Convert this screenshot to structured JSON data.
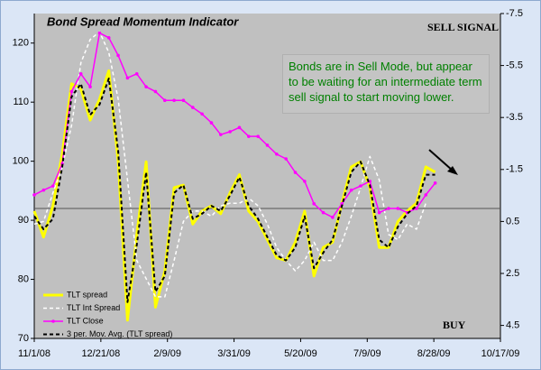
{
  "chart_data": {
    "type": "line",
    "title": "Bond Spread Momentum Indicator",
    "annotations": {
      "top_right": "SELL SIGNAL",
      "bottom_right": "BUY",
      "note": "Bonds are in Sell Mode, but appear to be waiting for an intermediate term sell signal to start moving lower."
    },
    "x": [
      "11/1/08",
      "11/8/08",
      "11/15/08",
      "11/22/08",
      "11/29/08",
      "12/6/08",
      "12/13/08",
      "12/20/08",
      "12/27/08",
      "1/3/09",
      "1/10/09",
      "1/17/09",
      "1/24/09",
      "1/31/09",
      "2/7/09",
      "2/14/09",
      "2/21/09",
      "2/28/09",
      "3/7/09",
      "3/14/09",
      "3/21/09",
      "3/28/09",
      "4/4/09",
      "4/11/09",
      "4/18/09",
      "4/25/09",
      "5/2/09",
      "5/9/09",
      "5/16/09",
      "5/23/09",
      "5/30/09",
      "6/6/09",
      "6/13/09",
      "6/20/09",
      "6/27/09",
      "7/4/09",
      "7/11/09",
      "7/18/09",
      "7/25/09",
      "8/1/09",
      "8/8/09",
      "8/15/09",
      "8/22/09",
      "8/29/09",
      "9/5/09"
    ],
    "xlim": [
      "11/1/08",
      "10/17/09"
    ],
    "xticks": [
      "11/1/08",
      "12/21/08",
      "2/9/09",
      "3/31/09",
      "5/20/09",
      "7/9/09",
      "8/28/09",
      "10/17/09"
    ],
    "ylim": [
      70,
      125
    ],
    "yticks": [
      70,
      80,
      90,
      100,
      110,
      120
    ],
    "y2lim": [
      5,
      -7.5
    ],
    "y2ticks": [
      -7.5,
      -5.5,
      -3.5,
      -1.5,
      0.5,
      2.5,
      4.5
    ],
    "reference_line": {
      "value": 0,
      "axis": "y2",
      "color": "#555555"
    },
    "legend": "bottom-left",
    "series": [
      {
        "name": "TLT spread",
        "color": "#ffff00",
        "axis": "y2",
        "dashed": false,
        "markers": false,
        "values": [
          0.1,
          1.1,
          -0.1,
          -2.1,
          -4.8,
          -4.6,
          -3.4,
          -4.2,
          -5.3,
          -1.8,
          4.3,
          1.0,
          -1.8,
          3.8,
          2.4,
          -0.8,
          -0.9,
          0.6,
          0.1,
          -0.1,
          0.2,
          -0.6,
          -1.3,
          0.1,
          0.5,
          1.2,
          1.9,
          2.0,
          1.3,
          0.1,
          2.6,
          1.5,
          1.3,
          -0.2,
          -1.6,
          -1.8,
          -0.8,
          1.5,
          1.5,
          0.5,
          0.1,
          -0.2,
          -1.6,
          -1.4,
          null
        ]
      },
      {
        "name": "TLT Int Spread",
        "color": "#ffffff",
        "axis": "y2",
        "dashed": true,
        "markers": false,
        "values": [
          0.6,
          0.5,
          -0.6,
          -1.6,
          -3.2,
          -5.6,
          -6.5,
          -6.8,
          -6.0,
          -4.2,
          -1.1,
          2.0,
          2.7,
          3.4,
          3.4,
          2.0,
          0.5,
          0.1,
          0.1,
          0.3,
          -0.1,
          -0.2,
          -0.2,
          -0.4,
          -0.1,
          0.6,
          1.5,
          2.0,
          2.4,
          2.0,
          1.3,
          2.0,
          2.0,
          1.3,
          0.3,
          -0.8,
          -2.0,
          -1.1,
          1.0,
          1.2,
          0.6,
          0.8,
          -0.2,
          null,
          null
        ]
      },
      {
        "name": "TLT Close",
        "color": "#ff00ff",
        "axis": "y",
        "dashed": false,
        "markers": true,
        "values": [
          94.3,
          95.1,
          95.8,
          99.6,
          111.8,
          114.8,
          112.6,
          121.7,
          120.9,
          117.9,
          114.1,
          114.8,
          112.6,
          111.8,
          110.3,
          110.3,
          110.3,
          109.1,
          108.0,
          106.5,
          104.5,
          105.0,
          105.7,
          104.2,
          104.2,
          102.7,
          101.2,
          100.4,
          98.1,
          96.6,
          92.8,
          91.3,
          90.5,
          92.8,
          95.1,
          95.8,
          96.6,
          91.3,
          92.0,
          92.0,
          91.3,
          92.0,
          94.3,
          96.3,
          null
        ]
      },
      {
        "name": "3 per. Mov. Avg. (TLT spread)",
        "color": "#000000",
        "axis": "y2",
        "dashed": true,
        "markers": false,
        "values": [
          0.3,
          0.8,
          0.4,
          -1.6,
          -4.3,
          -4.8,
          -3.6,
          -4.0,
          -5.0,
          -2.2,
          3.6,
          1.4,
          -1.4,
          3.2,
          2.6,
          -0.6,
          -0.9,
          0.4,
          0.2,
          -0.1,
          0.1,
          -0.5,
          -1.2,
          -0.1,
          0.4,
          1.1,
          1.8,
          2.0,
          1.5,
          0.3,
          2.3,
          1.7,
          1.2,
          -0.1,
          -1.4,
          -1.8,
          -0.9,
          1.2,
          1.5,
          0.7,
          0.2,
          -0.1,
          -1.3,
          -1.3,
          null
        ]
      }
    ]
  }
}
